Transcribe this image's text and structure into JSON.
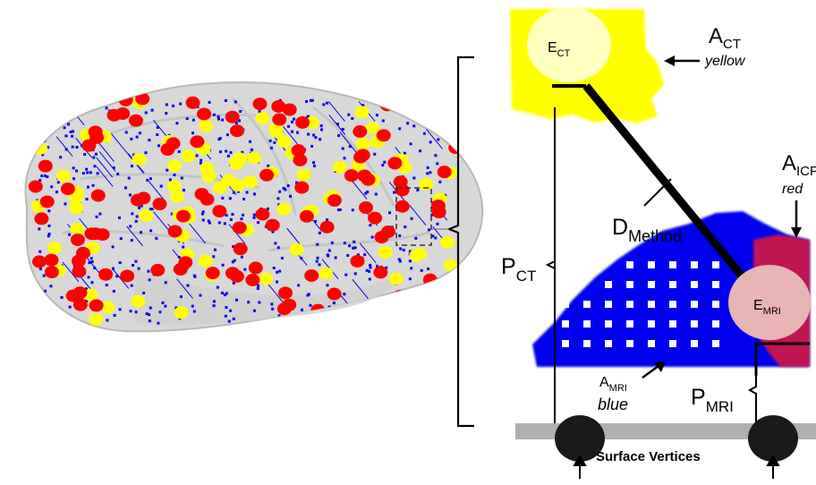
{
  "labels": {
    "e_ct": {
      "main": "E",
      "sub": "CT"
    },
    "a_ct": {
      "main": "A",
      "sub": "CT",
      "note": "yellow"
    },
    "a_icp": {
      "main": "A",
      "sub": "ICP",
      "note": "red"
    },
    "d_method": {
      "main": "D",
      "sub": "Method"
    },
    "p_ct": {
      "main": "P",
      "sub": "CT"
    },
    "e_mri": {
      "main": "E",
      "sub": "MRI"
    },
    "a_mri": {
      "main": "A",
      "sub": "MRI",
      "note": "blue"
    },
    "p_mri": {
      "main": "P",
      "sub": "MRI"
    },
    "surface": "Surface Vertices"
  },
  "colors": {
    "ct_area": "#ffff00",
    "ct_electrode": "#ffffc0",
    "mri_area": "#0000ee",
    "mri_electrode": "#e8b4b4",
    "icp_area": "#ff0000",
    "brain": "#d4d4d4",
    "vertex": "#1a1a1a",
    "surface_band": "#b0b0b0"
  }
}
